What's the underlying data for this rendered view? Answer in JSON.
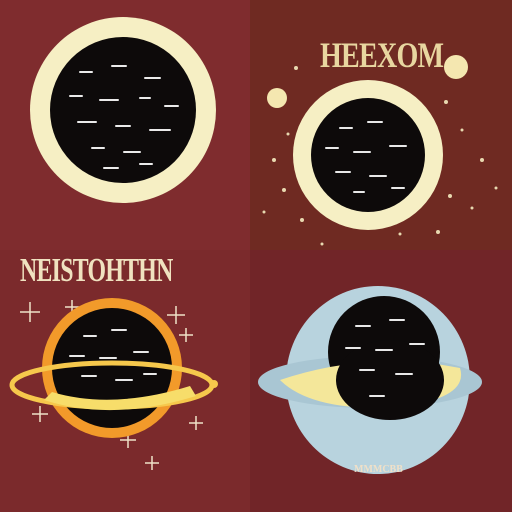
{
  "panels": [
    {
      "title": ""
    },
    {
      "title": "HEEXOM"
    },
    {
      "title": "NEISTOHTHN"
    },
    {
      "title": "",
      "caption": "MMMCBB"
    }
  ],
  "colors": {
    "background": "#7a2a2b",
    "ring_cream": "#f6efc4",
    "planet_black": "#0d0a0a",
    "orange_ring": "#f29a2a",
    "yellow_band": "#f4e79a",
    "pale_blue": "#b8d3de",
    "title_gold": "#e8d6a0"
  }
}
